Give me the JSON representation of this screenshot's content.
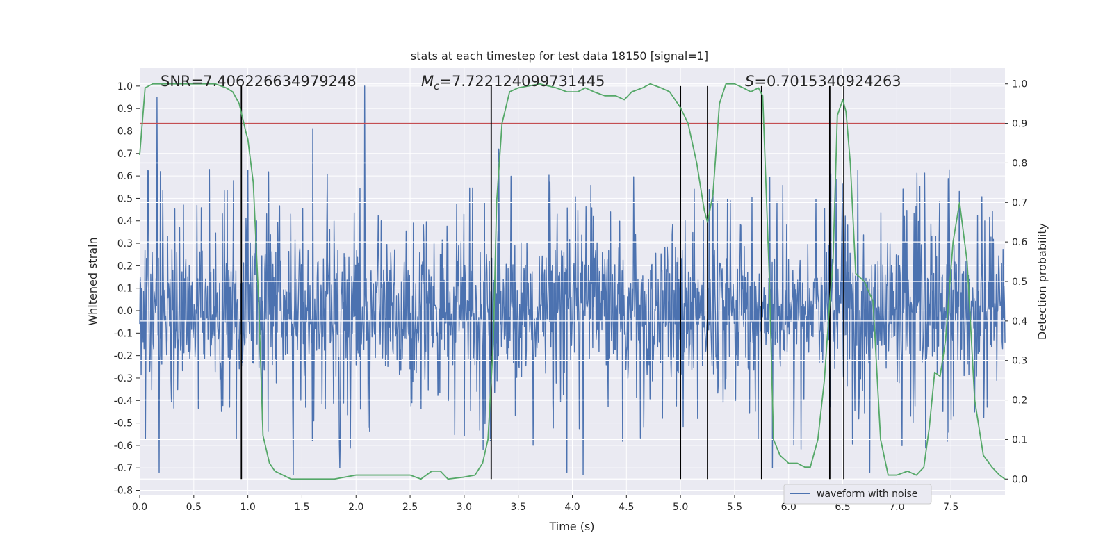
{
  "chart_data": {
    "type": "line",
    "title": "stats at each timestep for test data 18150 [signal=1]",
    "xlabel": "Time (s)",
    "ylabel_left": "Whitened strain",
    "ylabel_right": "Detection probability",
    "xlim": [
      0,
      8
    ],
    "ylim_left": [
      -0.82,
      1.08
    ],
    "ylim_right": [
      -0.04,
      1.04
    ],
    "x_ticks": [
      0.0,
      0.5,
      1.0,
      1.5,
      2.0,
      2.5,
      3.0,
      3.5,
      4.0,
      4.5,
      5.0,
      5.5,
      6.0,
      6.5,
      7.0,
      7.5
    ],
    "y_ticks_left": [
      -0.8,
      -0.7,
      -0.6,
      -0.5,
      -0.4,
      -0.3,
      -0.2,
      -0.1,
      0.0,
      0.1,
      0.2,
      0.3,
      0.4,
      0.5,
      0.6,
      0.7,
      0.8,
      0.9,
      1.0
    ],
    "y_ticks_right": [
      0.0,
      0.1,
      0.2,
      0.3,
      0.4,
      0.5,
      0.6,
      0.7,
      0.8,
      0.9,
      1.0
    ],
    "grid": true,
    "legend": {
      "position": "lower-right",
      "entries": [
        "waveform with noise"
      ]
    },
    "annotations": {
      "snr": "SNR=7.406226634979248",
      "mc_symbol": "M",
      "mc_sub": "c",
      "mc_value": "=7.722124099731445",
      "s_symbol": "S",
      "s_value": "=0.7015340924263"
    },
    "threshold": {
      "value": 0.9,
      "axis": "right",
      "color": "#c44e52"
    },
    "vlines": [
      0.94,
      3.25,
      5.0,
      5.25,
      5.75,
      6.38,
      6.51
    ],
    "waveform": {
      "name": "waveform with noise",
      "color": "#4c72b0",
      "duration": 8.0,
      "samples": 1800,
      "typical_envelope": 0.45,
      "spikes": [
        {
          "t": 0.16,
          "v": 0.95
        },
        {
          "t": 2.08,
          "v": 1.0
        },
        {
          "t": 1.6,
          "v": 0.81
        },
        {
          "t": 3.32,
          "v": 0.72
        },
        {
          "t": 6.38,
          "v": 0.78
        },
        {
          "t": 0.18,
          "v": -0.72
        },
        {
          "t": 1.42,
          "v": -0.73
        },
        {
          "t": 4.1,
          "v": -0.73
        },
        {
          "t": 5.85,
          "v": -0.7
        },
        {
          "t": 6.75,
          "v": -0.72
        },
        {
          "t": 1.85,
          "v": -0.7
        },
        {
          "t": 3.95,
          "v": -0.72
        }
      ]
    },
    "detection_probability": {
      "color": "#55a868",
      "points": [
        [
          0.0,
          0.82
        ],
        [
          0.05,
          0.99
        ],
        [
          0.12,
          1.0
        ],
        [
          0.3,
          1.0
        ],
        [
          0.5,
          1.0
        ],
        [
          0.7,
          1.0
        ],
        [
          0.8,
          0.99
        ],
        [
          0.86,
          0.98
        ],
        [
          0.92,
          0.95
        ],
        [
          0.98,
          0.88
        ],
        [
          1.0,
          0.86
        ],
        [
          1.05,
          0.75
        ],
        [
          1.1,
          0.45
        ],
        [
          1.14,
          0.11
        ],
        [
          1.2,
          0.04
        ],
        [
          1.25,
          0.02
        ],
        [
          1.4,
          0.0
        ],
        [
          1.6,
          0.0
        ],
        [
          1.8,
          0.0
        ],
        [
          2.0,
          0.01
        ],
        [
          2.15,
          0.01
        ],
        [
          2.25,
          0.01
        ],
        [
          2.5,
          0.01
        ],
        [
          2.6,
          0.0
        ],
        [
          2.7,
          0.02
        ],
        [
          2.78,
          0.02
        ],
        [
          2.85,
          0.0
        ],
        [
          3.0,
          0.005
        ],
        [
          3.1,
          0.01
        ],
        [
          3.17,
          0.04
        ],
        [
          3.22,
          0.1
        ],
        [
          3.27,
          0.35
        ],
        [
          3.3,
          0.7
        ],
        [
          3.35,
          0.9
        ],
        [
          3.42,
          0.98
        ],
        [
          3.5,
          0.99
        ],
        [
          3.7,
          1.0
        ],
        [
          3.85,
          0.99
        ],
        [
          3.95,
          0.98
        ],
        [
          4.05,
          0.98
        ],
        [
          4.12,
          0.99
        ],
        [
          4.2,
          0.98
        ],
        [
          4.3,
          0.97
        ],
        [
          4.4,
          0.97
        ],
        [
          4.48,
          0.96
        ],
        [
          4.55,
          0.98
        ],
        [
          4.65,
          0.99
        ],
        [
          4.72,
          1.0
        ],
        [
          4.82,
          0.99
        ],
        [
          4.9,
          0.98
        ],
        [
          5.0,
          0.94
        ],
        [
          5.07,
          0.9
        ],
        [
          5.15,
          0.8
        ],
        [
          5.22,
          0.68
        ],
        [
          5.25,
          0.65
        ],
        [
          5.3,
          0.72
        ],
        [
          5.36,
          0.95
        ],
        [
          5.42,
          1.0
        ],
        [
          5.5,
          1.0
        ],
        [
          5.58,
          0.99
        ],
        [
          5.65,
          0.98
        ],
        [
          5.72,
          0.99
        ],
        [
          5.76,
          0.97
        ],
        [
          5.82,
          0.52
        ],
        [
          5.86,
          0.1
        ],
        [
          5.92,
          0.06
        ],
        [
          6.0,
          0.04
        ],
        [
          6.08,
          0.04
        ],
        [
          6.15,
          0.03
        ],
        [
          6.2,
          0.03
        ],
        [
          6.27,
          0.1
        ],
        [
          6.33,
          0.25
        ],
        [
          6.38,
          0.45
        ],
        [
          6.41,
          0.55
        ],
        [
          6.45,
          0.92
        ],
        [
          6.5,
          0.96
        ],
        [
          6.53,
          0.93
        ],
        [
          6.57,
          0.8
        ],
        [
          6.62,
          0.52
        ],
        [
          6.7,
          0.5
        ],
        [
          6.78,
          0.45
        ],
        [
          6.85,
          0.1
        ],
        [
          6.92,
          0.01
        ],
        [
          7.0,
          0.01
        ],
        [
          7.1,
          0.02
        ],
        [
          7.18,
          0.01
        ],
        [
          7.25,
          0.03
        ],
        [
          7.3,
          0.13
        ],
        [
          7.35,
          0.27
        ],
        [
          7.4,
          0.26
        ],
        [
          7.45,
          0.35
        ],
        [
          7.52,
          0.6
        ],
        [
          7.58,
          0.7
        ],
        [
          7.65,
          0.55
        ],
        [
          7.72,
          0.2
        ],
        [
          7.8,
          0.06
        ],
        [
          7.88,
          0.03
        ],
        [
          7.95,
          0.01
        ],
        [
          8.0,
          0.0
        ]
      ]
    }
  }
}
